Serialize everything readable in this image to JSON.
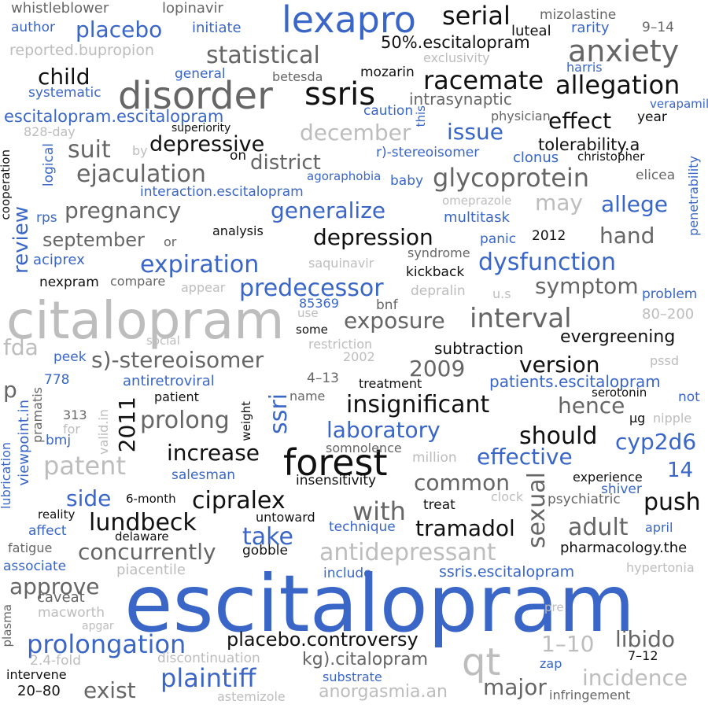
{
  "palette": {
    "blue": "#3a66c8",
    "black": "#111111",
    "dark_gray": "#666666",
    "light_gray": "#bdbdbd"
  },
  "words": [
    {
      "text": "escitalopram",
      "color": "blue"
    },
    {
      "text": "citalopram",
      "color": "light_gray"
    },
    {
      "text": "forest",
      "color": "black"
    },
    {
      "text": "lexapro",
      "color": "blue"
    },
    {
      "text": "disorder",
      "color": "dark_gray"
    },
    {
      "text": "ssris",
      "color": "black"
    },
    {
      "text": "qt",
      "color": "light_gray"
    },
    {
      "text": "anxiety",
      "color": "dark_gray"
    },
    {
      "text": "racemate",
      "color": "black"
    },
    {
      "text": "allegation",
      "color": "black"
    },
    {
      "text": "serial",
      "color": "black"
    },
    {
      "text": "placebo",
      "color": "blue"
    },
    {
      "text": "statistical",
      "color": "dark_gray"
    },
    {
      "text": "child",
      "color": "black"
    },
    {
      "text": "glycoprotein",
      "color": "dark_gray"
    },
    {
      "text": "ejaculation",
      "color": "dark_gray"
    },
    {
      "text": "depressive",
      "color": "black"
    },
    {
      "text": "district",
      "color": "dark_gray"
    },
    {
      "text": "suit",
      "color": "dark_gray"
    },
    {
      "text": "december",
      "color": "light_gray"
    },
    {
      "text": "issue",
      "color": "blue"
    },
    {
      "text": "effect",
      "color": "black"
    },
    {
      "text": "tolerability.a",
      "color": "black"
    },
    {
      "text": "escitalopram.escitalopram",
      "color": "blue"
    },
    {
      "text": "pregnancy",
      "color": "dark_gray"
    },
    {
      "text": "generalize",
      "color": "blue"
    },
    {
      "text": "allege",
      "color": "blue"
    },
    {
      "text": "may",
      "color": "light_gray"
    },
    {
      "text": "hand",
      "color": "dark_gray"
    },
    {
      "text": "depression",
      "color": "black"
    },
    {
      "text": "september",
      "color": "dark_gray"
    },
    {
      "text": "expiration",
      "color": "blue"
    },
    {
      "text": "dysfunction",
      "color": "blue"
    },
    {
      "text": "predecessor",
      "color": "blue"
    },
    {
      "text": "symptom",
      "color": "dark_gray"
    },
    {
      "text": "interval",
      "color": "dark_gray"
    },
    {
      "text": "exposure",
      "color": "dark_gray"
    },
    {
      "text": "s)-stereoisomer",
      "color": "dark_gray"
    },
    {
      "text": "version",
      "color": "black"
    },
    {
      "text": "evergreening",
      "color": "black"
    },
    {
      "text": "2009",
      "color": "dark_gray"
    },
    {
      "text": "subtraction",
      "color": "black"
    },
    {
      "text": "insignificant",
      "color": "black"
    },
    {
      "text": "hence",
      "color": "dark_gray"
    },
    {
      "text": "patients.escitalopram",
      "color": "blue"
    },
    {
      "text": "prolong",
      "color": "dark_gray"
    },
    {
      "text": "laboratory",
      "color": "blue"
    },
    {
      "text": "should",
      "color": "black"
    },
    {
      "text": "cyp2d6",
      "color": "blue"
    },
    {
      "text": "increase",
      "color": "black"
    },
    {
      "text": "effective",
      "color": "blue"
    },
    {
      "text": "patent",
      "color": "light_gray"
    },
    {
      "text": "common",
      "color": "dark_gray"
    },
    {
      "text": "cipralex",
      "color": "black"
    },
    {
      "text": "side",
      "color": "blue"
    },
    {
      "text": "push",
      "color": "black"
    },
    {
      "text": "lundbeck",
      "color": "black"
    },
    {
      "text": "with",
      "color": "dark_gray"
    },
    {
      "text": "tramadol",
      "color": "black"
    },
    {
      "text": "adult",
      "color": "dark_gray"
    },
    {
      "text": "take",
      "color": "blue"
    },
    {
      "text": "concurrently",
      "color": "dark_gray"
    },
    {
      "text": "antidepressant",
      "color": "light_gray"
    },
    {
      "text": "approve",
      "color": "dark_gray"
    },
    {
      "text": "prolongation",
      "color": "blue"
    },
    {
      "text": "placebo.controversy",
      "color": "black"
    },
    {
      "text": "libido",
      "color": "dark_gray"
    },
    {
      "text": "1–10",
      "color": "light_gray"
    },
    {
      "text": "plaintiff",
      "color": "blue"
    },
    {
      "text": "exist",
      "color": "dark_gray"
    },
    {
      "text": "major",
      "color": "dark_gray"
    },
    {
      "text": "incidence",
      "color": "light_gray"
    },
    {
      "text": "anorgasmia.an",
      "color": "light_gray"
    },
    {
      "text": "kg).citalopram",
      "color": "dark_gray"
    },
    {
      "text": "fda",
      "color": "light_gray"
    },
    {
      "text": "p",
      "color": "dark_gray"
    },
    {
      "text": "2011",
      "color": "black"
    },
    {
      "text": "ssri",
      "color": "blue"
    },
    {
      "text": "sexual",
      "color": "dark_gray"
    },
    {
      "text": "review",
      "color": "blue"
    },
    {
      "text": "14",
      "color": "blue"
    },
    {
      "text": "whistleblower",
      "color": "dark_gray"
    },
    {
      "text": "lopinavir",
      "color": "dark_gray"
    },
    {
      "text": "author",
      "color": "blue"
    },
    {
      "text": "initiate",
      "color": "blue"
    },
    {
      "text": "mizolastine",
      "color": "dark_gray"
    },
    {
      "text": "luteal",
      "color": "black"
    },
    {
      "text": "rarity",
      "color": "blue"
    },
    {
      "text": "9–14",
      "color": "dark_gray"
    },
    {
      "text": "50%.escitalopram",
      "color": "black"
    },
    {
      "text": "reported.bupropion",
      "color": "light_gray"
    },
    {
      "text": "exclusivity",
      "color": "light_gray"
    },
    {
      "text": "harris",
      "color": "blue"
    },
    {
      "text": "general",
      "color": "blue"
    },
    {
      "text": "betesda",
      "color": "dark_gray"
    },
    {
      "text": "mozarin",
      "color": "black"
    },
    {
      "text": "systematic",
      "color": "blue"
    },
    {
      "text": "intrasynaptic",
      "color": "dark_gray"
    },
    {
      "text": "verapamil",
      "color": "blue"
    },
    {
      "text": "caution",
      "color": "blue"
    },
    {
      "text": "this",
      "color": "blue"
    },
    {
      "text": "physician",
      "color": "dark_gray"
    },
    {
      "text": "year",
      "color": "black"
    },
    {
      "text": "828-day",
      "color": "light_gray"
    },
    {
      "text": "superiority",
      "color": "black"
    },
    {
      "text": "by",
      "color": "light_gray"
    },
    {
      "text": "on",
      "color": "black"
    },
    {
      "text": "r)-stereoisomer",
      "color": "blue"
    },
    {
      "text": "clonus",
      "color": "blue"
    },
    {
      "text": "christopher",
      "color": "black"
    },
    {
      "text": "logical",
      "color": "blue"
    },
    {
      "text": "agoraphobia",
      "color": "blue"
    },
    {
      "text": "baby",
      "color": "blue"
    },
    {
      "text": "elicea",
      "color": "dark_gray"
    },
    {
      "text": "interaction.escitalopram",
      "color": "blue"
    },
    {
      "text": "omeprazole",
      "color": "light_gray"
    },
    {
      "text": "penetrability",
      "color": "blue"
    },
    {
      "text": "cooperation",
      "color": "black"
    },
    {
      "text": "rps",
      "color": "blue"
    },
    {
      "text": "multitask",
      "color": "blue"
    },
    {
      "text": "analysis",
      "color": "black"
    },
    {
      "text": "or",
      "color": "dark_gray"
    },
    {
      "text": "syndrome",
      "color": "dark_gray"
    },
    {
      "text": "panic",
      "color": "blue"
    },
    {
      "text": "2012",
      "color": "black"
    },
    {
      "text": "aciprex",
      "color": "blue"
    },
    {
      "text": "saquinavir",
      "color": "light_gray"
    },
    {
      "text": "kickback",
      "color": "black"
    },
    {
      "text": "nexpram",
      "color": "black"
    },
    {
      "text": "compare",
      "color": "dark_gray"
    },
    {
      "text": "appear",
      "color": "light_gray"
    },
    {
      "text": "depralin",
      "color": "light_gray"
    },
    {
      "text": "u.s",
      "color": "light_gray"
    },
    {
      "text": "problem",
      "color": "blue"
    },
    {
      "text": "85369",
      "color": "blue"
    },
    {
      "text": "bnf",
      "color": "dark_gray"
    },
    {
      "text": "use",
      "color": "light_gray"
    },
    {
      "text": "80–200",
      "color": "light_gray"
    },
    {
      "text": "some",
      "color": "black"
    },
    {
      "text": "social",
      "color": "light_gray"
    },
    {
      "text": "restriction",
      "color": "light_gray"
    },
    {
      "text": "peek",
      "color": "blue"
    },
    {
      "text": "2002",
      "color": "light_gray"
    },
    {
      "text": "pssd",
      "color": "light_gray"
    },
    {
      "text": "778",
      "color": "blue"
    },
    {
      "text": "antiretroviral",
      "color": "blue"
    },
    {
      "text": "4–13",
      "color": "dark_gray"
    },
    {
      "text": "treatment",
      "color": "black"
    },
    {
      "text": "pramatis",
      "color": "dark_gray"
    },
    {
      "text": "viewpoint.in",
      "color": "blue"
    },
    {
      "text": "patient",
      "color": "black"
    },
    {
      "text": "name",
      "color": "dark_gray"
    },
    {
      "text": "serotonin",
      "color": "black"
    },
    {
      "text": "not",
      "color": "blue"
    },
    {
      "text": "313",
      "color": "dark_gray"
    },
    {
      "text": "weight",
      "color": "black"
    },
    {
      "text": "µg",
      "color": "black"
    },
    {
      "text": "nipple",
      "color": "light_gray"
    },
    {
      "text": "for",
      "color": "light_gray"
    },
    {
      "text": "valid.in",
      "color": "light_gray"
    },
    {
      "text": "bmj",
      "color": "blue"
    },
    {
      "text": "somnolence",
      "color": "dark_gray"
    },
    {
      "text": "lubrication",
      "color": "blue"
    },
    {
      "text": "million",
      "color": "light_gray"
    },
    {
      "text": "salesman",
      "color": "blue"
    },
    {
      "text": "insensitivity",
      "color": "black"
    },
    {
      "text": "experience",
      "color": "black"
    },
    {
      "text": "shiver",
      "color": "blue"
    },
    {
      "text": "6-month",
      "color": "black"
    },
    {
      "text": "clock",
      "color": "light_gray"
    },
    {
      "text": "treat",
      "color": "black"
    },
    {
      "text": "psychiatric",
      "color": "dark_gray"
    },
    {
      "text": "reality",
      "color": "black"
    },
    {
      "text": "untoward",
      "color": "black"
    },
    {
      "text": "affect",
      "color": "blue"
    },
    {
      "text": "technique",
      "color": "blue"
    },
    {
      "text": "april",
      "color": "blue"
    },
    {
      "text": "delaware",
      "color": "black"
    },
    {
      "text": "pharmacology.the",
      "color": "black"
    },
    {
      "text": "fatigue",
      "color": "dark_gray"
    },
    {
      "text": "gobble",
      "color": "black"
    },
    {
      "text": "associate",
      "color": "blue"
    },
    {
      "text": "piacentile",
      "color": "light_gray"
    },
    {
      "text": "include",
      "color": "blue"
    },
    {
      "text": "ssris.escitalopram",
      "color": "blue"
    },
    {
      "text": "hypertonia",
      "color": "light_gray"
    },
    {
      "text": "plasma",
      "color": "dark_gray"
    },
    {
      "text": "caveat",
      "color": "dark_gray"
    },
    {
      "text": "macworth",
      "color": "light_gray"
    },
    {
      "text": "pre",
      "color": "light_gray"
    },
    {
      "text": "apgar",
      "color": "light_gray"
    },
    {
      "text": "2.4-fold",
      "color": "light_gray"
    },
    {
      "text": "discontinuation",
      "color": "light_gray"
    },
    {
      "text": "7–12",
      "color": "black"
    },
    {
      "text": "zap",
      "color": "blue"
    },
    {
      "text": "intervene",
      "color": "black"
    },
    {
      "text": "substrate",
      "color": "blue"
    },
    {
      "text": "20–80",
      "color": "black"
    },
    {
      "text": "astemizole",
      "color": "light_gray"
    },
    {
      "text": "infringement",
      "color": "dark_gray"
    }
  ]
}
